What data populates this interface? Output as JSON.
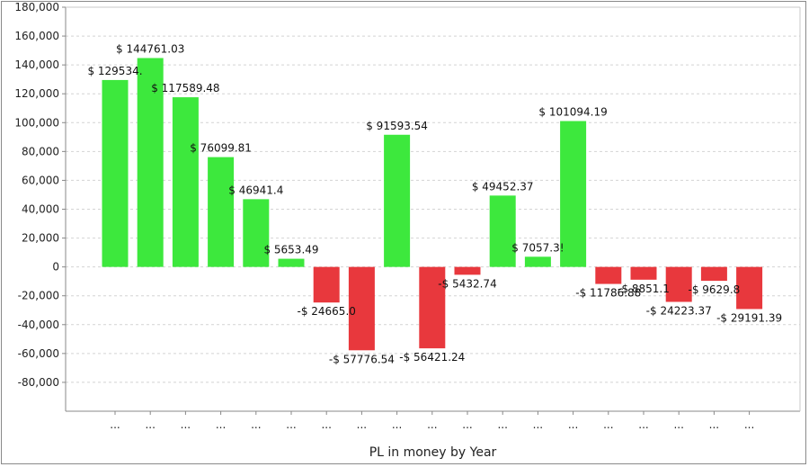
{
  "chart_data": {
    "type": "bar",
    "title": "",
    "xlabel": "PL in money by Year",
    "ylabel": "",
    "ylim": [
      -100000,
      180000
    ],
    "yticks": [
      180000,
      160000,
      140000,
      120000,
      100000,
      80000,
      60000,
      40000,
      20000,
      0,
      -20000,
      -40000,
      -60000,
      -80000
    ],
    "ytick_labels": [
      "180,000",
      "160,000",
      "140,000",
      "120,000",
      "100,000",
      "80,000",
      "60,000",
      "40,000",
      "20,000",
      "0",
      "-20,000",
      "-40,000",
      "-60,000",
      "-80,000"
    ],
    "grid": true,
    "legend": "none",
    "categories": [
      "...",
      "...",
      "...",
      "...",
      "...",
      "...",
      "...",
      "...",
      "...",
      "...",
      "...",
      "...",
      "...",
      "...",
      "...",
      "...",
      "...",
      "...",
      "..."
    ],
    "values": [
      129534,
      144761.03,
      117589.48,
      76099.81,
      46941.4,
      5653.49,
      -24665,
      -57776.54,
      91593.54,
      -56421.24,
      -5432.74,
      49452.37,
      7057.35,
      101094.19,
      -11786.88,
      -8851.1,
      -24223.37,
      -9629.8,
      -29191.39
    ],
    "data_labels": [
      "$ 129534.",
      "$ 144761.03",
      "$ 117589.48",
      "$ 76099.81",
      "$ 46941.4",
      "$ 5653.49",
      "-$ 24665.0",
      "-$ 57776.54",
      "$ 91593.54",
      "-$ 56421.24",
      "-$ 5432.74",
      "$ 49452.37",
      "$ 7057.3!",
      "$ 101094.19",
      "-$ 11786.88",
      "-$ 8851.1",
      "-$ 24223.37",
      "-$ 9629.8",
      "-$ 29191.39"
    ],
    "colors": {
      "positive": "#3de83d",
      "negative": "#e8383d",
      "grid": "#d4d4d4",
      "axis": "#888888"
    }
  }
}
